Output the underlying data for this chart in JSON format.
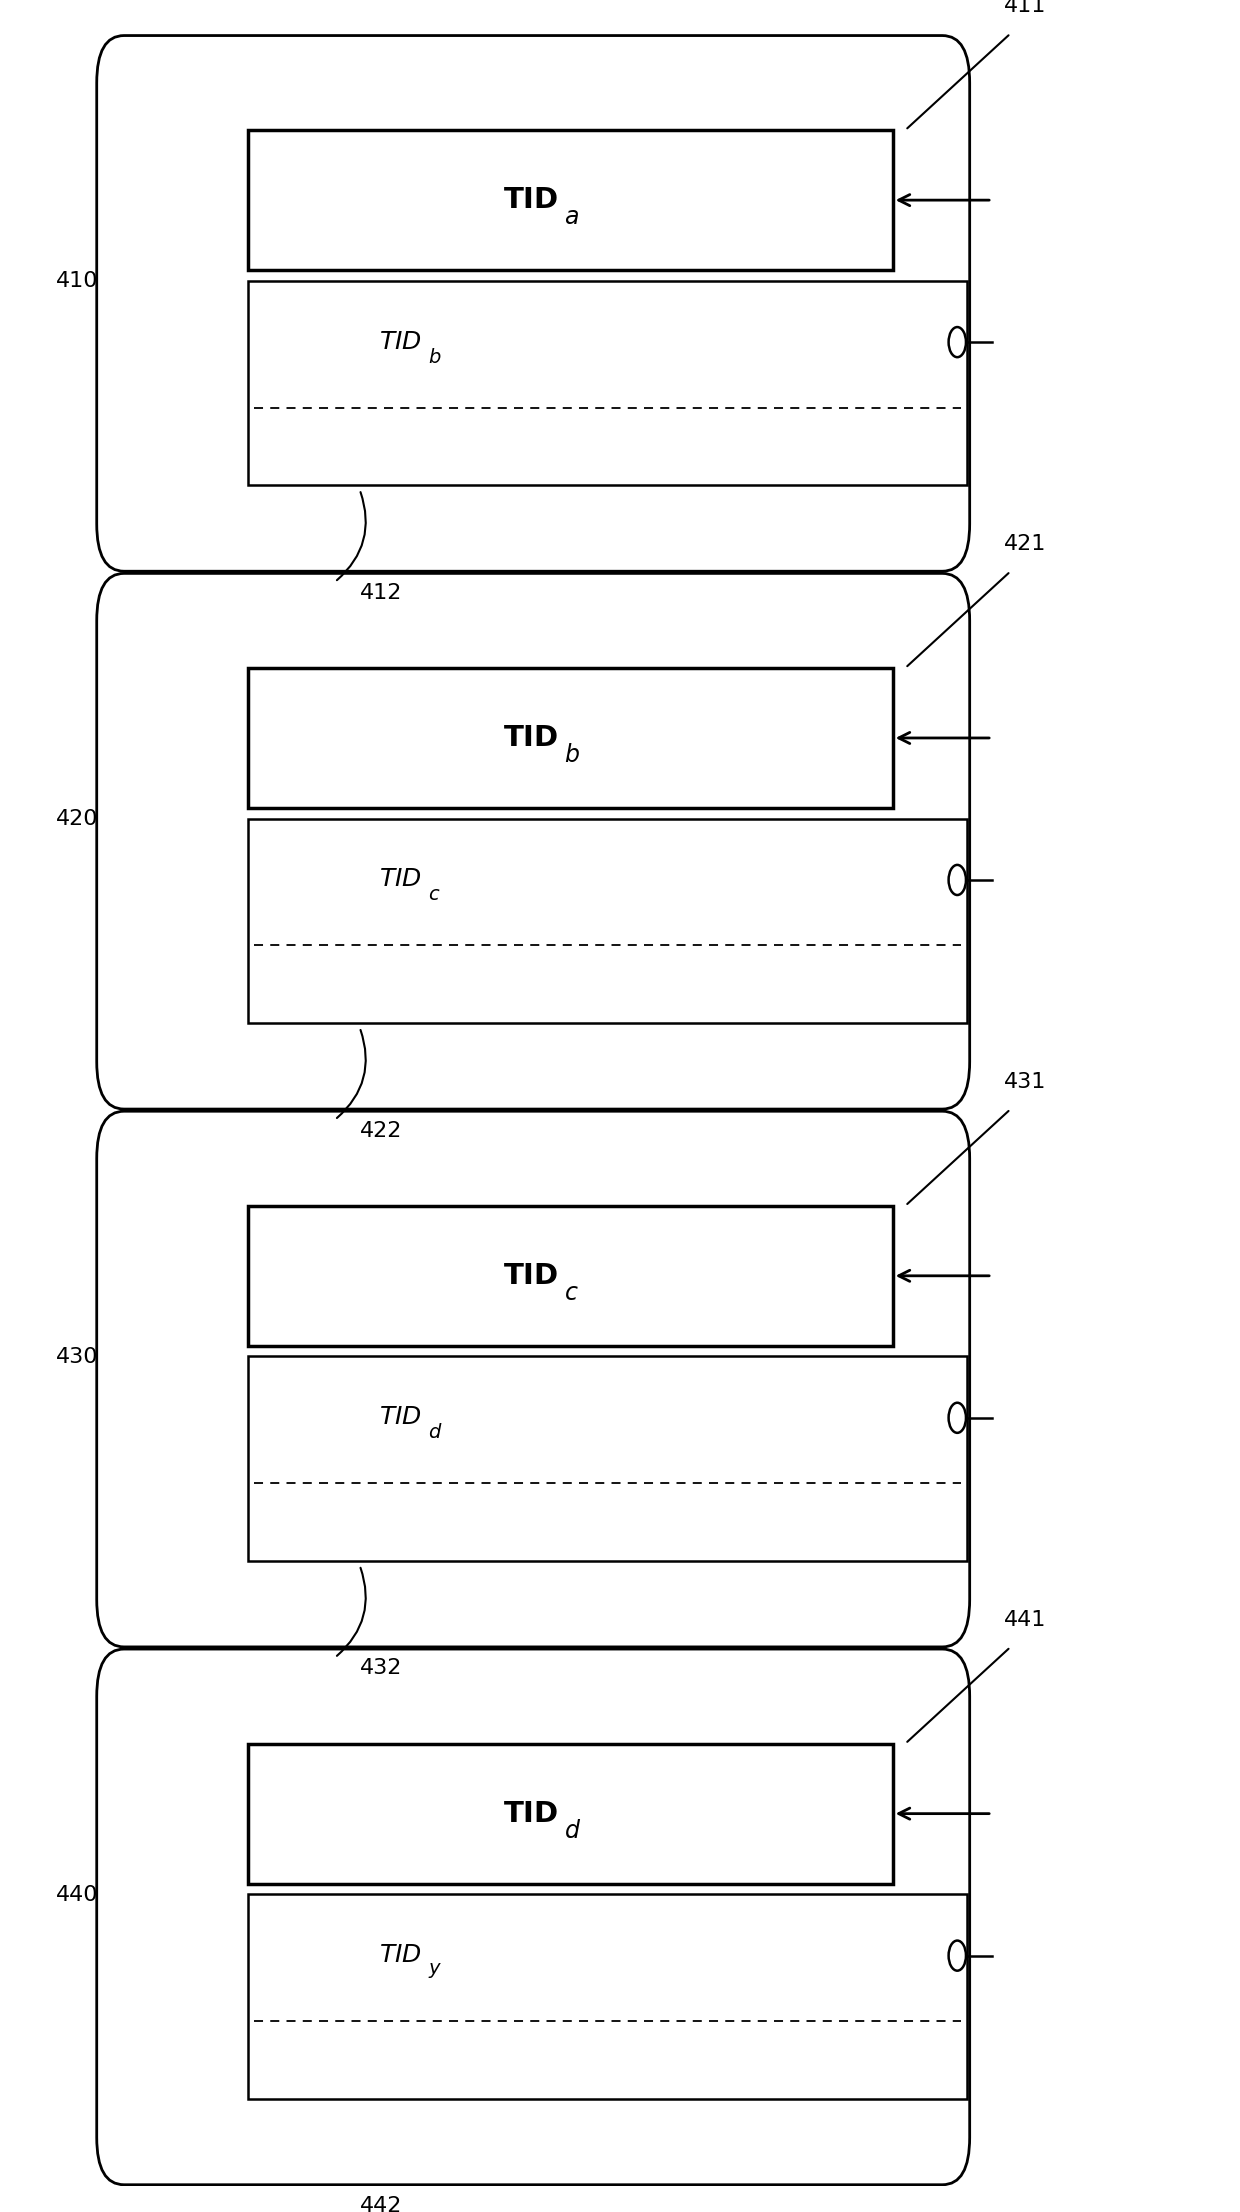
{
  "blocks": [
    {
      "outer_label": "410",
      "top_box_label": "411",
      "top_box_subscript": "a",
      "bottom_box_subscript": "b",
      "link_label": "412"
    },
    {
      "outer_label": "420",
      "top_box_label": "421",
      "top_box_subscript": "b",
      "bottom_box_subscript": "c",
      "link_label": "422"
    },
    {
      "outer_label": "430",
      "top_box_label": "431",
      "top_box_subscript": "c",
      "bottom_box_subscript": "d",
      "link_label": "432"
    },
    {
      "outer_label": "440",
      "top_box_label": "441",
      "top_box_subscript": "d",
      "bottom_box_subscript": "y",
      "link_label": "442"
    }
  ],
  "bg_color": "#ffffff",
  "box_color": "#000000",
  "line_color": "#000000",
  "fig_width": 12.4,
  "fig_height": 22.12
}
